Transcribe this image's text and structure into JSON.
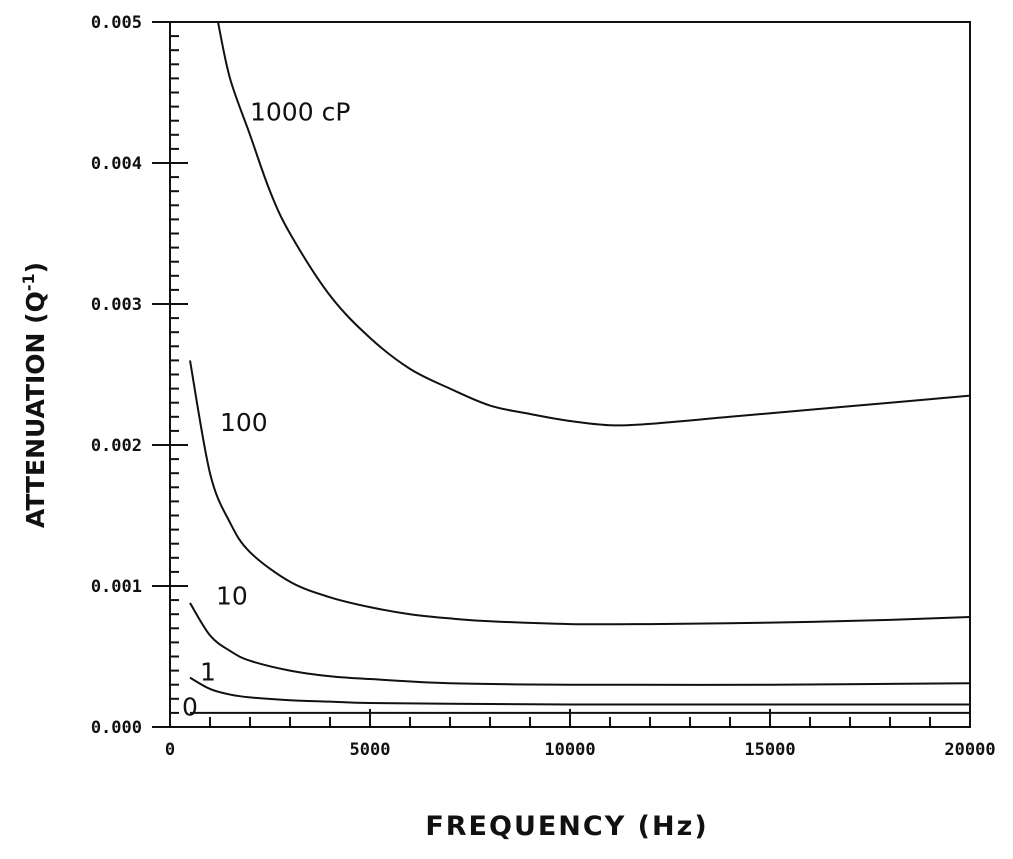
{
  "chart_data": {
    "type": "line",
    "title": "",
    "xlabel": "FREQUENCY  (Hz)",
    "ylabel": "ATTENUATION (Q",
    "ylabel_superscript": "-1",
    "ylabel_suffix": ")",
    "xlim": [
      0,
      20000
    ],
    "ylim": [
      0,
      0.005
    ],
    "x_ticks": [
      0,
      5000,
      10000,
      15000,
      20000
    ],
    "x_tick_labels": [
      "0",
      "5000",
      "10000",
      "15000",
      "20000"
    ],
    "y_ticks": [
      0,
      0.001,
      0.002,
      0.003,
      0.004,
      0.005
    ],
    "y_tick_labels": [
      "0.000",
      "0.001",
      "0.002",
      "0.003",
      "0.004",
      "0.005"
    ],
    "grid": false,
    "series": [
      {
        "name": "0",
        "label_at": [
          300,
          8e-05
        ],
        "x": [
          500,
          20000
        ],
        "y": [
          0.0001,
          0.0001
        ]
      },
      {
        "name": "1",
        "label_at": [
          750,
          0.00033
        ],
        "x": [
          500,
          1000,
          1500,
          2000,
          3000,
          4000,
          5000,
          7000,
          10000,
          15000,
          20000
        ],
        "y": [
          0.00035,
          0.00027,
          0.00023,
          0.00021,
          0.00019,
          0.00018,
          0.00017,
          0.000165,
          0.00016,
          0.00016,
          0.00016
        ]
      },
      {
        "name": "10",
        "label_at": [
          1150,
          0.00087
        ],
        "x": [
          500,
          1000,
          1500,
          2000,
          3000,
          4000,
          5000,
          7000,
          10000,
          15000,
          20000
        ],
        "y": [
          0.00088,
          0.00065,
          0.00054,
          0.00047,
          0.0004,
          0.00036,
          0.00034,
          0.00031,
          0.0003,
          0.0003,
          0.00031
        ]
      },
      {
        "name": "100",
        "label_at": [
          1250,
          0.0021
        ],
        "x": [
          500,
          1000,
          1500,
          2000,
          3000,
          4000,
          5000,
          6000,
          7000,
          8000,
          10000,
          12000,
          15000,
          18000,
          20000
        ],
        "y": [
          0.0026,
          0.0018,
          0.00145,
          0.00124,
          0.00103,
          0.00092,
          0.00085,
          0.0008,
          0.00077,
          0.00075,
          0.00073,
          0.00073,
          0.00074,
          0.00076,
          0.00078
        ]
      },
      {
        "name": "1000  cP",
        "label_at": [
          2000,
          0.0043
        ],
        "x": [
          1200,
          1500,
          2000,
          2500,
          3000,
          4000,
          5000,
          6000,
          7000,
          8000,
          9000,
          10000,
          11000,
          12000,
          14000,
          16000,
          18000,
          20000
        ],
        "y": [
          0.005,
          0.0046,
          0.0042,
          0.0038,
          0.0035,
          0.00306,
          0.00276,
          0.00254,
          0.0024,
          0.00228,
          0.00222,
          0.00217,
          0.00214,
          0.00215,
          0.0022,
          0.00225,
          0.0023,
          0.00235
        ]
      }
    ]
  }
}
